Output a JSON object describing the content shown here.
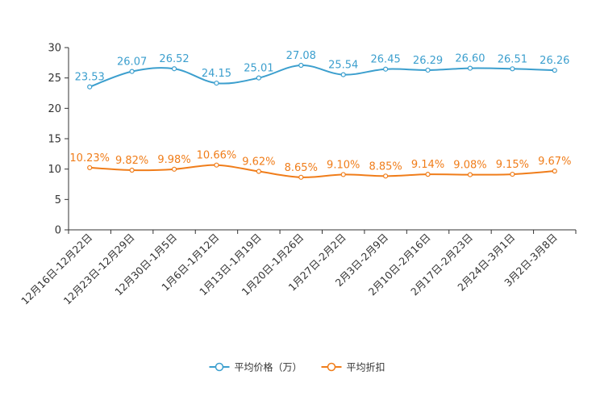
{
  "chart_data": {
    "type": "line",
    "categories": [
      "12月16日-12月22日",
      "12月23日-12月29日",
      "12月30日-1月5日",
      "1月6日-1月12日",
      "1月13日-1月19日",
      "1月20日-1月26日",
      "1月27日-2月2日",
      "2月3日-2月9日",
      "2月10日-2月16日",
      "2月17日-2月23日",
      "2月24日-3月1日",
      "3月2日-3月8日"
    ],
    "ylim": [
      0,
      30
    ],
    "yticks": [
      0,
      5,
      10,
      15,
      20,
      25,
      30
    ],
    "series": [
      {
        "name": "平均价格（万）",
        "color": "#3c9fce",
        "values": [
          23.53,
          26.07,
          26.52,
          24.15,
          25.01,
          27.08,
          25.54,
          26.45,
          26.29,
          26.6,
          26.51,
          26.26
        ],
        "labels": [
          "23.53",
          "26.07",
          "26.52",
          "24.15",
          "25.01",
          "27.08",
          "25.54",
          "26.45",
          "26.29",
          "26.60",
          "26.51",
          "26.26"
        ]
      },
      {
        "name": "平均折扣",
        "color": "#f07d1a",
        "values": [
          10.23,
          9.82,
          9.98,
          10.66,
          9.62,
          8.65,
          9.1,
          8.85,
          9.14,
          9.08,
          9.15,
          9.67
        ],
        "labels": [
          "10.23%",
          "9.82%",
          "9.98%",
          "10.66%",
          "9.62%",
          "8.65%",
          "9.10%",
          "8.85%",
          "9.14%",
          "9.08%",
          "9.15%",
          "9.67%"
        ]
      }
    ],
    "legend_position": "bottom-center"
  }
}
